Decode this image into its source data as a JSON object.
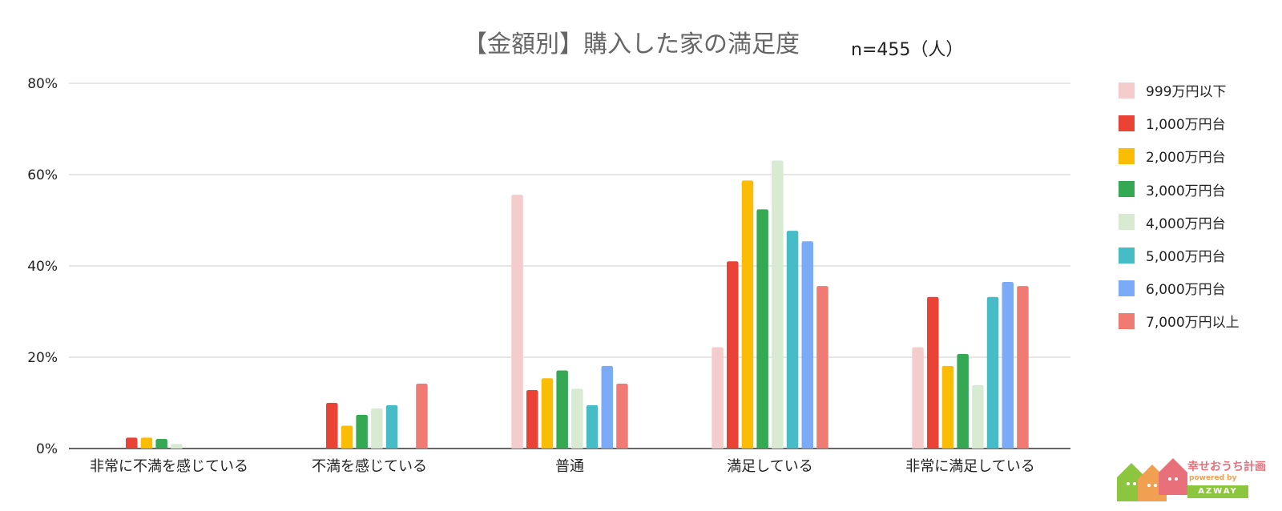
{
  "chart_data": {
    "type": "bar",
    "title": "【金額別】購入した家の満足度",
    "subtitle": "n=455（人）",
    "xlabel": "",
    "ylabel": "",
    "ylim": [
      0,
      80
    ],
    "yticks": [
      "0%",
      "20%",
      "40%",
      "60%",
      "80%"
    ],
    "grid": true,
    "legend_position": "right",
    "categories": [
      "非常に不満を感じている",
      "不満を感じている",
      "普通",
      "満足している",
      "非常に満足している"
    ],
    "series": [
      {
        "name": "999万円以下",
        "color": "#f4cccc",
        "values": [
          0,
          0,
          55.6,
          22.2,
          22.2
        ]
      },
      {
        "name": "1,000万円台",
        "color": "#ea4335",
        "values": [
          2.4,
          10.0,
          12.8,
          41.0,
          33.2
        ]
      },
      {
        "name": "2,000万円台",
        "color": "#fbbc04",
        "values": [
          2.4,
          5.0,
          15.4,
          58.7,
          18.1
        ]
      },
      {
        "name": "3,000万円台",
        "color": "#34a853",
        "values": [
          2.1,
          7.4,
          17.1,
          52.4,
          20.7
        ]
      },
      {
        "name": "4,000万円台",
        "color": "#d9ead3",
        "values": [
          1.0,
          8.8,
          13.1,
          63.1,
          13.9
        ]
      },
      {
        "name": "5,000万円台",
        "color": "#46bdc6",
        "values": [
          0,
          9.5,
          9.5,
          47.7,
          33.2
        ]
      },
      {
        "name": "6,000万円台",
        "color": "#7baaf7",
        "values": [
          0,
          0,
          18.1,
          45.4,
          36.5
        ]
      },
      {
        "name": "7,000万円以上",
        "color": "#f07b72",
        "values": [
          0,
          14.2,
          14.2,
          35.6,
          35.6
        ]
      }
    ]
  },
  "logo": {
    "name": "幸せおうち計画",
    "powered": "powered by",
    "badge": "AZWAY"
  }
}
